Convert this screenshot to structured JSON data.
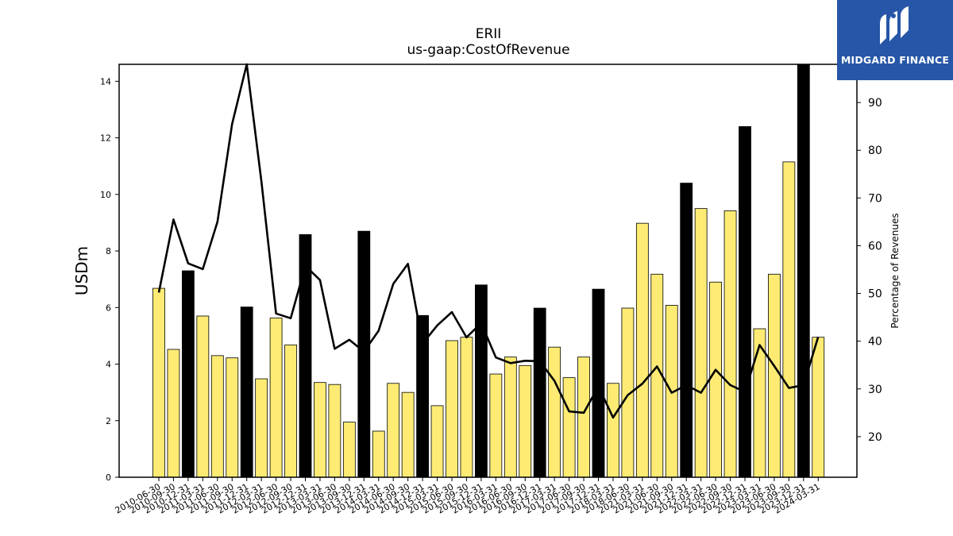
{
  "chart_data": {
    "type": "bar+line",
    "title": "ERII",
    "subtitle": "us-gaap:CostOfRevenue",
    "ylabel": "USDm",
    "y2label": "Percentage of Revenues",
    "ylim": [
      0,
      14.6
    ],
    "y2lim": [
      11.5,
      98
    ],
    "yticks": [
      0,
      2,
      4,
      6,
      8,
      10,
      12,
      14
    ],
    "y2ticks": [
      20,
      30,
      40,
      50,
      60,
      70,
      80,
      90
    ],
    "colors": {
      "bar_quarter": "#fdeb74",
      "bar_annual": "#000000",
      "line": "#000000"
    },
    "categories": [
      "2010-06-30",
      "2010-09-30",
      "2010-12-31",
      "2011-03-31",
      "2011-06-30",
      "2011-09-30",
      "2011-12-31",
      "2012-03-31",
      "2012-06-30",
      "2012-09-30",
      "2012-12-31",
      "2013-03-31",
      "2013-06-30",
      "2013-09-30",
      "2013-12-31",
      "2014-03-31",
      "2014-06-30",
      "2014-09-30",
      "2014-12-31",
      "2015-03-31",
      "2015-06-30",
      "2015-09-30",
      "2015-12-31",
      "2016-03-31",
      "2016-06-30",
      "2016-09-30",
      "2016-12-31",
      "2017-03-31",
      "2017-06-30",
      "2017-09-30",
      "2017-12-31",
      "2018-03-31",
      "2018-06-30",
      "2021-03-31",
      "2021-06-30",
      "2021-09-30",
      "2021-12-31",
      "2022-03-31",
      "2022-06-30",
      "2022-09-30",
      "2022-12-31",
      "2023-03-31",
      "2023-06-30",
      "2023-09-30",
      "2023-12-31",
      "2024-03-31"
    ],
    "bar_values": [
      6.68,
      4.52,
      7.3,
      5.7,
      4.3,
      4.22,
      6.02,
      3.48,
      5.63,
      4.68,
      8.58,
      3.35,
      3.28,
      1.95,
      8.7,
      1.63,
      3.32,
      3.0,
      5.72,
      2.53,
      4.83,
      4.95,
      6.8,
      3.65,
      4.25,
      3.95,
      5.98,
      4.6,
      3.52,
      4.25,
      6.65,
      3.32,
      5.98,
      8.98,
      7.18,
      6.08,
      10.4,
      9.5,
      6.9,
      9.42,
      12.4,
      5.25,
      7.18,
      11.15,
      14.6,
      4.95
    ],
    "bar_is_annual": [
      false,
      false,
      true,
      false,
      false,
      false,
      true,
      false,
      false,
      false,
      true,
      false,
      false,
      false,
      true,
      false,
      false,
      false,
      true,
      false,
      false,
      false,
      true,
      false,
      false,
      false,
      true,
      false,
      false,
      false,
      true,
      false,
      false,
      false,
      false,
      false,
      true,
      false,
      false,
      false,
      true,
      false,
      false,
      false,
      true,
      false
    ],
    "line_values": [
      50.2,
      65.5,
      56.3,
      55.1,
      65.0,
      85.5,
      98.0,
      73.5,
      45.8,
      44.8,
      55.8,
      52.8,
      38.4,
      40.3,
      37.8,
      42.2,
      52.0,
      56.2,
      39.5,
      43.3,
      46.1,
      40.8,
      43.8,
      36.6,
      35.4,
      35.9,
      35.8,
      31.7,
      25.3,
      25.0,
      30.5,
      24.0,
      28.7,
      31.1,
      34.7,
      29.2,
      30.8,
      29.2,
      34.0,
      30.8,
      29.4,
      39.2,
      34.8,
      30.2,
      30.8,
      40.9
    ],
    "grid": false,
    "legend": "none"
  },
  "logo": {
    "text": "MIDGARD FINANCE"
  }
}
